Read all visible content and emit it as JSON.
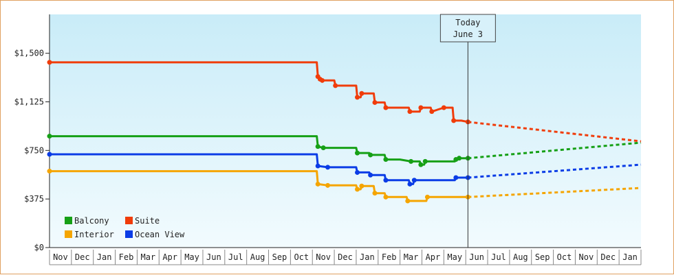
{
  "chart_data": {
    "type": "line",
    "title": "",
    "xlabel": "",
    "ylabel": "",
    "ylim": [
      0,
      1800
    ],
    "yticks": [
      0,
      375,
      750,
      1125,
      1500
    ],
    "ytick_labels": [
      "$0",
      "$375",
      "$750",
      "$1,125",
      "$1,500"
    ],
    "month_labels": [
      "Nov",
      "Dec",
      "Jan",
      "Feb",
      "Mar",
      "Apr",
      "May",
      "Jun",
      "Jul",
      "Aug",
      "Sep",
      "Oct",
      "Nov",
      "Dec",
      "Jan",
      "Feb",
      "Mar",
      "Apr",
      "May",
      "Jun",
      "Jul",
      "Aug",
      "Sep",
      "Oct",
      "Nov",
      "Dec",
      "Jan"
    ],
    "x_unit": "months from start of first labelled month (Nov)",
    "today_x": 19.1,
    "today_label_line1": "Today",
    "today_label_line2": "June 3",
    "legend_placement": "bottom-left",
    "grid": false,
    "series": [
      {
        "name": "Balcony",
        "color": "#16a016",
        "points": [
          [
            0,
            860
          ],
          [
            12.2,
            860
          ],
          [
            12.25,
            780
          ],
          [
            12.5,
            770
          ],
          [
            13.4,
            770
          ],
          [
            14.0,
            770
          ],
          [
            14.05,
            730
          ],
          [
            14.6,
            730
          ],
          [
            14.65,
            715
          ],
          [
            15.3,
            715
          ],
          [
            15.35,
            680
          ],
          [
            16.0,
            680
          ],
          [
            16.5,
            665
          ],
          [
            16.9,
            665
          ],
          [
            16.95,
            640
          ],
          [
            17.1,
            640
          ],
          [
            17.15,
            665
          ],
          [
            18.0,
            665
          ],
          [
            18.5,
            665
          ],
          [
            18.55,
            680
          ],
          [
            18.7,
            690
          ],
          [
            18.9,
            690
          ],
          [
            19.1,
            690
          ]
        ],
        "projection": [
          [
            19.1,
            690
          ],
          [
            27.0,
            810
          ]
        ]
      },
      {
        "name": "Suite",
        "color": "#f03c0a",
        "points": [
          [
            0,
            1430
          ],
          [
            12.2,
            1430
          ],
          [
            12.25,
            1320
          ],
          [
            12.35,
            1300
          ],
          [
            12.45,
            1290
          ],
          [
            13.0,
            1290
          ],
          [
            13.05,
            1250
          ],
          [
            14.0,
            1250
          ],
          [
            14.05,
            1160
          ],
          [
            14.2,
            1160
          ],
          [
            14.25,
            1190
          ],
          [
            14.8,
            1190
          ],
          [
            14.85,
            1120
          ],
          [
            15.3,
            1120
          ],
          [
            15.35,
            1080
          ],
          [
            16.0,
            1080
          ],
          [
            16.4,
            1080
          ],
          [
            16.45,
            1050
          ],
          [
            16.9,
            1050
          ],
          [
            16.95,
            1080
          ],
          [
            17.4,
            1080
          ],
          [
            17.45,
            1050
          ],
          [
            18.0,
            1080
          ],
          [
            18.4,
            1080
          ],
          [
            18.45,
            980
          ],
          [
            18.8,
            980
          ],
          [
            19.1,
            970
          ]
        ],
        "projection": [
          [
            19.1,
            970
          ],
          [
            27.0,
            820
          ]
        ]
      },
      {
        "name": "Interior",
        "color": "#f5a500",
        "points": [
          [
            0,
            590
          ],
          [
            12.2,
            590
          ],
          [
            12.25,
            490
          ],
          [
            12.7,
            480
          ],
          [
            13.4,
            480
          ],
          [
            14.0,
            480
          ],
          [
            14.05,
            450
          ],
          [
            14.2,
            450
          ],
          [
            14.25,
            475
          ],
          [
            14.8,
            475
          ],
          [
            14.85,
            420
          ],
          [
            15.3,
            420
          ],
          [
            15.35,
            390
          ],
          [
            16.0,
            390
          ],
          [
            16.3,
            390
          ],
          [
            16.35,
            360
          ],
          [
            17.2,
            360
          ],
          [
            17.25,
            390
          ],
          [
            18.0,
            390
          ],
          [
            18.5,
            390
          ],
          [
            18.9,
            390
          ],
          [
            19.1,
            390
          ]
        ],
        "projection": [
          [
            19.1,
            390
          ],
          [
            27.0,
            460
          ]
        ]
      },
      {
        "name": "Ocean View",
        "color": "#0a3ce6",
        "points": [
          [
            0,
            720
          ],
          [
            12.2,
            720
          ],
          [
            12.25,
            630
          ],
          [
            12.7,
            620
          ],
          [
            13.4,
            620
          ],
          [
            14.0,
            620
          ],
          [
            14.05,
            580
          ],
          [
            14.6,
            580
          ],
          [
            14.65,
            560
          ],
          [
            15.3,
            560
          ],
          [
            15.35,
            520
          ],
          [
            16.0,
            520
          ],
          [
            16.4,
            520
          ],
          [
            16.45,
            490
          ],
          [
            16.6,
            490
          ],
          [
            16.65,
            520
          ],
          [
            17.2,
            520
          ],
          [
            18.0,
            520
          ],
          [
            18.5,
            520
          ],
          [
            18.55,
            540
          ],
          [
            18.8,
            540
          ],
          [
            19.1,
            540
          ]
        ],
        "projection": [
          [
            19.1,
            540
          ],
          [
            27.0,
            640
          ]
        ]
      }
    ]
  }
}
